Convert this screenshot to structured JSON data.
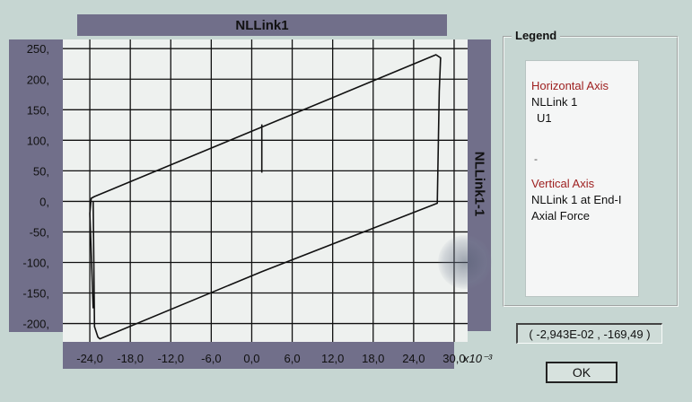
{
  "window": {
    "plot_title": "NLLink1",
    "right_axis_label": "NLLink1-1"
  },
  "legend": {
    "title": "Legend",
    "horizontal_axis_heading": "Horizontal Axis",
    "horizontal_line1": "NLLink 1",
    "horizontal_line2": "U1",
    "separator": "-",
    "vertical_axis_heading": "Vertical Axis",
    "vertical_line1": "NLLink 1 at End-I",
    "vertical_line2": "Axial Force"
  },
  "coordinate_readout": "( -2,943E-02 , -169,49 )",
  "ok_label": "OK",
  "colors": {
    "background": "#c6d6d2",
    "title_bar": "#716f8a",
    "plot_area": "#eef1ef",
    "grid": "#111111",
    "legend_heading": "#9e2020"
  },
  "chart_data": {
    "type": "line",
    "title": "NLLink1",
    "xlabel": "",
    "ylabel": "",
    "x_scale_label": "x10⁻³",
    "x_tick_labels": [
      "-24,0",
      "-18,0",
      "-12,0",
      "-6,0",
      "0,0",
      "6,0",
      "12,0",
      "18,0",
      "24,0",
      "30,0"
    ],
    "y_tick_labels": [
      "250,",
      "200,",
      "150,",
      "100,",
      "50,",
      "0,",
      "-50,",
      "-100,",
      "-150,",
      "-200,"
    ],
    "xlim": [
      -28.0,
      32.0
    ],
    "ylim": [
      -230.0,
      265.0
    ],
    "grid": true,
    "series": [
      {
        "x": [
          -23.5,
          -23.3,
          -22.8,
          -22.5,
          1.5,
          1.5,
          1.5,
          27.5,
          27.8,
          28.0,
          27.3,
          -23.3,
          -23.8,
          -24.0,
          -23.5
        ],
        "y": [
          0,
          -205,
          -222,
          -225,
          -115,
          -115,
          -115,
          -3,
          180,
          235,
          240,
          8,
          5,
          -20,
          -175
        ]
      },
      {
        "x": [
          1.5,
          1.5
        ],
        "y": [
          126,
          47
        ]
      }
    ]
  }
}
